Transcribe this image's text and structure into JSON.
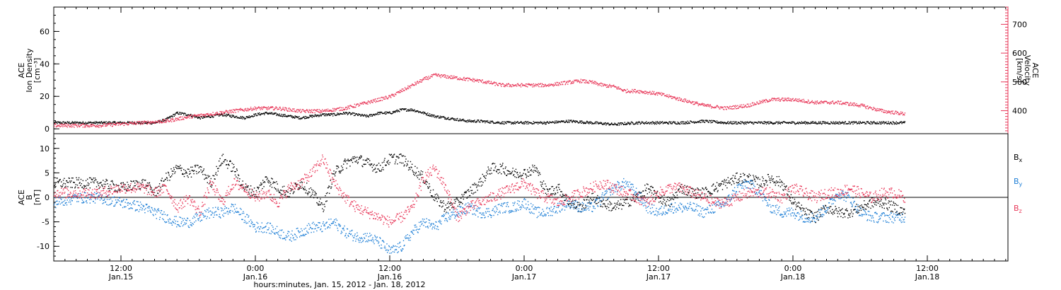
{
  "colors": {
    "black": "#000000",
    "pink": "#e8395a",
    "blue": "#1e7fd6"
  },
  "x_axis": {
    "title": "hours:minutes, Jan. 15, 2012 - Jan. 18, 2012",
    "range_hours": [
      6.0,
      91.2
    ],
    "ticks": [
      {
        "hours": 12,
        "time": "12:00",
        "date": "Jan.15"
      },
      {
        "hours": 24,
        "time": "0:00",
        "date": "Jan.16"
      },
      {
        "hours": 36,
        "time": "12:00",
        "date": "Jan.16"
      },
      {
        "hours": 48,
        "time": "0:00",
        "date": "Jan.17"
      },
      {
        "hours": 60,
        "time": "12:00",
        "date": "Jan.17"
      },
      {
        "hours": 72,
        "time": "0:00",
        "date": "Jan.18"
      },
      {
        "hours": 84,
        "time": "12:00",
        "date": "Jan.18"
      }
    ]
  },
  "chart_data": [
    {
      "type": "scatter",
      "panel": "top",
      "left_axis": {
        "label_lines": [
          "ACE",
          "Ion Density",
          "[cm⁻³]"
        ],
        "ylim": [
          -3,
          75
        ],
        "ticks": [
          0,
          20,
          40,
          60
        ]
      },
      "right_axis": {
        "label_lines": [
          "ACE",
          "Velocity",
          "[km/s]"
        ],
        "ylim": [
          320,
          760
        ],
        "ticks": [
          400,
          500,
          600,
          700
        ]
      },
      "series": [
        {
          "name": "Ion Density",
          "axis": "left",
          "color": "#000000",
          "x_hours": [
            6,
            9,
            11,
            12,
            13,
            14,
            15,
            16,
            17,
            18,
            19,
            20,
            21,
            22,
            23,
            24,
            25,
            26,
            27,
            28,
            29,
            30,
            31,
            32,
            33,
            34,
            35,
            36,
            37,
            38,
            39,
            40,
            41,
            42,
            43,
            44,
            46,
            48,
            50,
            52,
            54,
            56,
            58,
            60,
            62,
            64,
            66,
            68,
            70,
            72,
            74,
            76,
            78,
            80,
            82
          ],
          "values": [
            4,
            4,
            4,
            4,
            4,
            4,
            4,
            6,
            10,
            9,
            7,
            8,
            9,
            8,
            7,
            9,
            10,
            9,
            8,
            7,
            8,
            9,
            9,
            10,
            9,
            8,
            10,
            10,
            12,
            12,
            10,
            8,
            7,
            6,
            5,
            5,
            4,
            4,
            4,
            5,
            4,
            3,
            4,
            4,
            4,
            5,
            4,
            4,
            4,
            4,
            4,
            4,
            4,
            4,
            4
          ]
        },
        {
          "name": "Velocity",
          "axis": "right",
          "color": "#e8395a",
          "x_hours": [
            6,
            8,
            10,
            12,
            14,
            16,
            18,
            20,
            22,
            24,
            26,
            28,
            30,
            32,
            34,
            35,
            36,
            37,
            38,
            39,
            40,
            41,
            42,
            44,
            46,
            48,
            50,
            52,
            53,
            54,
            55,
            56,
            57,
            58,
            60,
            62,
            64,
            66,
            68,
            70,
            72,
            74,
            76,
            78,
            80,
            82
          ],
          "values": [
            350,
            350,
            350,
            355,
            360,
            365,
            380,
            390,
            400,
            410,
            410,
            400,
            400,
            410,
            430,
            440,
            450,
            470,
            490,
            510,
            525,
            520,
            515,
            505,
            490,
            490,
            490,
            500,
            505,
            500,
            490,
            485,
            470,
            470,
            460,
            440,
            420,
            410,
            420,
            440,
            440,
            430,
            430,
            420,
            400,
            390
          ]
        }
      ]
    },
    {
      "type": "scatter",
      "panel": "bottom",
      "left_axis": {
        "label_lines": [
          "ACE",
          "B",
          "[nT]"
        ],
        "ylim": [
          -13,
          13
        ],
        "ticks": [
          -10,
          -5,
          0,
          5,
          10
        ]
      },
      "legend_position": "right",
      "series": [
        {
          "name": "Bx",
          "name_base": "B",
          "name_sub": "x",
          "color": "#000000",
          "x_hours": [
            6,
            8,
            10,
            12,
            14,
            15,
            16,
            17,
            18,
            19,
            20,
            21,
            22,
            23,
            24,
            25,
            26,
            27,
            28,
            29,
            30,
            31,
            32,
            33,
            34,
            35,
            36,
            37,
            38,
            39,
            40,
            41,
            42,
            43,
            44,
            45,
            46,
            47,
            48,
            49,
            50,
            51,
            52,
            53,
            54,
            55,
            56,
            57,
            58,
            59,
            60,
            61,
            62,
            63,
            64,
            65,
            66,
            67,
            68,
            69,
            70,
            71,
            72,
            73,
            74,
            75,
            76,
            77,
            78,
            79,
            80,
            81,
            82
          ],
          "values": [
            3,
            3,
            3,
            2,
            3,
            1,
            4,
            6,
            5,
            6,
            3,
            8,
            6,
            2,
            1,
            4,
            2,
            1,
            3,
            1,
            -2,
            5,
            7,
            8,
            7,
            6,
            8,
            8,
            6,
            4,
            0,
            -2,
            -1,
            1,
            3,
            6,
            6,
            5,
            5,
            6,
            1,
            2,
            -1,
            -2,
            0,
            -1,
            -2,
            -1,
            0,
            2,
            0,
            -1,
            2,
            1,
            1,
            2,
            3,
            4,
            4,
            3,
            4,
            3,
            -1,
            -3,
            -4,
            -2,
            -3,
            -3,
            -2,
            -1,
            -1,
            -2,
            -3
          ]
        },
        {
          "name": "By",
          "name_base": "B",
          "name_sub": "y",
          "color": "#1e7fd6",
          "x_hours": [
            6,
            8,
            10,
            12,
            14,
            15,
            16,
            17,
            18,
            19,
            20,
            21,
            22,
            23,
            24,
            25,
            26,
            27,
            28,
            29,
            30,
            31,
            32,
            33,
            34,
            35,
            36,
            37,
            38,
            39,
            40,
            41,
            42,
            43,
            44,
            45,
            46,
            47,
            48,
            49,
            50,
            51,
            52,
            53,
            54,
            55,
            56,
            57,
            58,
            59,
            60,
            61,
            62,
            63,
            64,
            65,
            66,
            67,
            68,
            69,
            70,
            71,
            72,
            73,
            74,
            75,
            76,
            77,
            78,
            79,
            80,
            81,
            82
          ],
          "values": [
            -1,
            0,
            0,
            -1,
            -2,
            -3,
            -4,
            -5,
            -5,
            -4,
            -3,
            -3,
            -2,
            -4,
            -6,
            -6,
            -7,
            -8,
            -7,
            -6,
            -6,
            -5,
            -7,
            -8,
            -8,
            -9,
            -11,
            -10,
            -7,
            -5,
            -6,
            -4,
            -3,
            -2,
            -3,
            -3,
            -2,
            -2,
            -1,
            -3,
            -3,
            -2,
            -1,
            -2,
            -2,
            0,
            2,
            3,
            1,
            -2,
            -3,
            -2,
            -2,
            -2,
            -3,
            -2,
            -1,
            2,
            3,
            1,
            -2,
            -3,
            -3,
            -4,
            -4,
            -2,
            1,
            0,
            -3,
            -4,
            -4,
            -4,
            -4
          ]
        },
        {
          "name": "Bz",
          "name_base": "B",
          "name_sub": "z",
          "color": "#e8395a",
          "x_hours": [
            6,
            8,
            10,
            12,
            14,
            15,
            16,
            17,
            18,
            19,
            20,
            21,
            22,
            23,
            24,
            25,
            26,
            27,
            28,
            29,
            30,
            31,
            32,
            33,
            34,
            35,
            36,
            37,
            38,
            39,
            40,
            41,
            42,
            43,
            44,
            45,
            46,
            47,
            48,
            49,
            50,
            51,
            52,
            53,
            54,
            55,
            56,
            57,
            58,
            59,
            60,
            61,
            62,
            63,
            64,
            65,
            66,
            67,
            68,
            69,
            70,
            71,
            72,
            73,
            74,
            75,
            76,
            77,
            78,
            79,
            80,
            81,
            82
          ],
          "values": [
            1,
            1,
            1,
            2,
            2,
            1,
            2,
            -2,
            0,
            -3,
            3,
            -1,
            3,
            2,
            0,
            1,
            -1,
            2,
            3,
            5,
            8,
            3,
            0,
            -2,
            -3,
            -4,
            -5,
            -4,
            -2,
            4,
            6,
            2,
            -4,
            -2,
            -1,
            0,
            1,
            2,
            3,
            1,
            0,
            -1,
            0,
            1,
            2,
            3,
            2,
            1,
            0,
            -1,
            1,
            2,
            2,
            1,
            0,
            -1,
            -1,
            0,
            1,
            1,
            1,
            0,
            2,
            1,
            0,
            1,
            1,
            2,
            1,
            0,
            1,
            1,
            0
          ]
        }
      ]
    }
  ]
}
